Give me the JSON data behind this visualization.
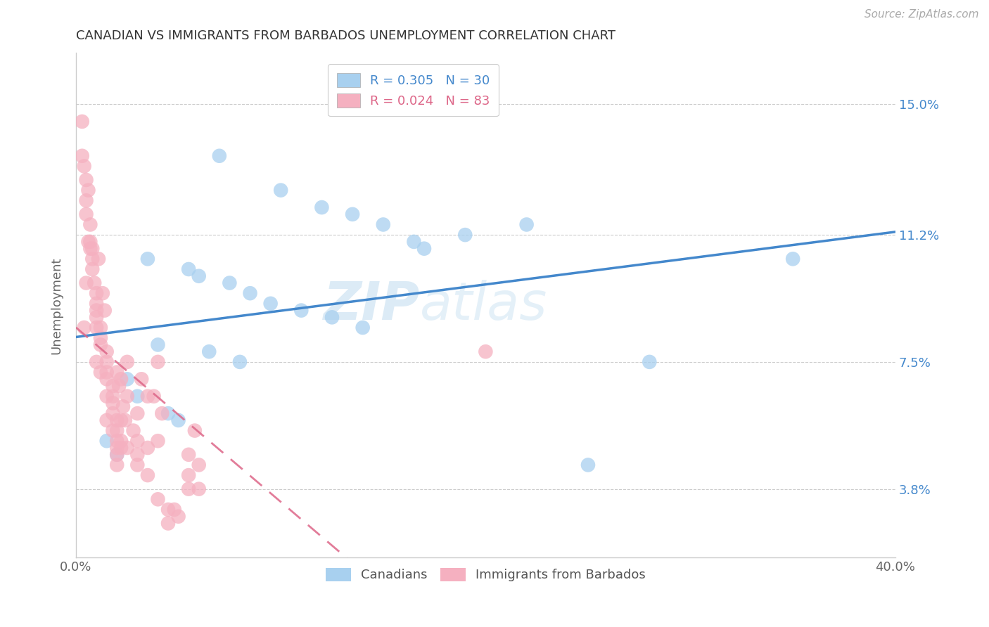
{
  "title": "CANADIAN VS IMMIGRANTS FROM BARBADOS UNEMPLOYMENT CORRELATION CHART",
  "source": "Source: ZipAtlas.com",
  "ylabel": "Unemployment",
  "yticks": [
    3.8,
    7.5,
    11.2,
    15.0
  ],
  "ytick_labels": [
    "3.8%",
    "7.5%",
    "11.2%",
    "15.0%"
  ],
  "xmin": 0.0,
  "xmax": 40.0,
  "ymin": 1.8,
  "ymax": 16.5,
  "r_canadian": 0.305,
  "n_canadian": 30,
  "r_barbados": 0.024,
  "n_barbados": 83,
  "color_canadian": "#a8d0ef",
  "color_barbados": "#f5b0c0",
  "color_canadian_line": "#4488cc",
  "color_barbados_line": "#dd6688",
  "watermark_line1": "ZIP",
  "watermark_line2": "atlas",
  "legend_label_canadian": "Canadians",
  "legend_label_barbados": "Immigrants from Barbados",
  "canadian_x": [
    7.0,
    10.0,
    12.0,
    13.5,
    15.0,
    16.5,
    3.5,
    5.5,
    6.0,
    7.5,
    8.5,
    9.5,
    11.0,
    12.5,
    14.0,
    4.0,
    6.5,
    8.0,
    2.5,
    3.0,
    4.5,
    5.0,
    28.0,
    35.0,
    1.5,
    2.0,
    17.0,
    19.0,
    22.0,
    25.0
  ],
  "canadian_y": [
    13.5,
    12.5,
    12.0,
    11.8,
    11.5,
    11.0,
    10.5,
    10.2,
    10.0,
    9.8,
    9.5,
    9.2,
    9.0,
    8.8,
    8.5,
    8.0,
    7.8,
    7.5,
    7.0,
    6.5,
    6.0,
    5.8,
    7.5,
    10.5,
    5.2,
    4.8,
    10.8,
    11.2,
    11.5,
    4.5
  ],
  "barbados_x": [
    0.3,
    0.3,
    0.5,
    0.5,
    0.5,
    0.5,
    0.7,
    0.7,
    0.7,
    0.8,
    0.8,
    1.0,
    1.0,
    1.0,
    1.0,
    1.0,
    1.0,
    1.2,
    1.2,
    1.2,
    1.2,
    1.5,
    1.5,
    1.5,
    1.5,
    1.5,
    1.5,
    1.8,
    1.8,
    1.8,
    1.8,
    1.8,
    2.0,
    2.0,
    2.0,
    2.0,
    2.0,
    2.0,
    2.0,
    2.2,
    2.2,
    2.2,
    2.2,
    2.5,
    2.5,
    2.5,
    3.0,
    3.0,
    3.0,
    3.0,
    3.5,
    3.5,
    3.5,
    4.0,
    4.0,
    4.0,
    4.5,
    4.5,
    5.0,
    5.5,
    5.5,
    5.5,
    4.8,
    6.0,
    6.0,
    5.8,
    4.2,
    3.8,
    3.2,
    2.8,
    2.3,
    1.3,
    0.6,
    0.4,
    0.9,
    1.1,
    0.6,
    1.4,
    2.1,
    2.4,
    0.8,
    20.0,
    0.4
  ],
  "barbados_y": [
    14.5,
    13.5,
    12.8,
    12.2,
    11.8,
    9.8,
    11.5,
    11.0,
    10.8,
    10.5,
    10.2,
    9.5,
    9.2,
    9.0,
    8.8,
    8.5,
    7.5,
    8.5,
    8.2,
    8.0,
    7.2,
    7.8,
    7.5,
    7.2,
    7.0,
    6.5,
    5.8,
    6.8,
    6.5,
    6.3,
    6.0,
    5.5,
    7.2,
    5.8,
    5.5,
    5.2,
    5.0,
    4.8,
    4.5,
    7.0,
    5.8,
    5.2,
    5.0,
    7.5,
    6.5,
    5.0,
    6.0,
    5.2,
    4.8,
    4.5,
    6.5,
    5.0,
    4.2,
    7.5,
    5.2,
    3.5,
    3.2,
    2.8,
    3.0,
    4.8,
    4.2,
    3.8,
    3.2,
    4.5,
    3.8,
    5.5,
    6.0,
    6.5,
    7.0,
    5.5,
    6.2,
    9.5,
    11.0,
    13.2,
    9.8,
    10.5,
    12.5,
    9.0,
    6.8,
    5.8,
    10.8,
    7.8,
    8.5
  ]
}
